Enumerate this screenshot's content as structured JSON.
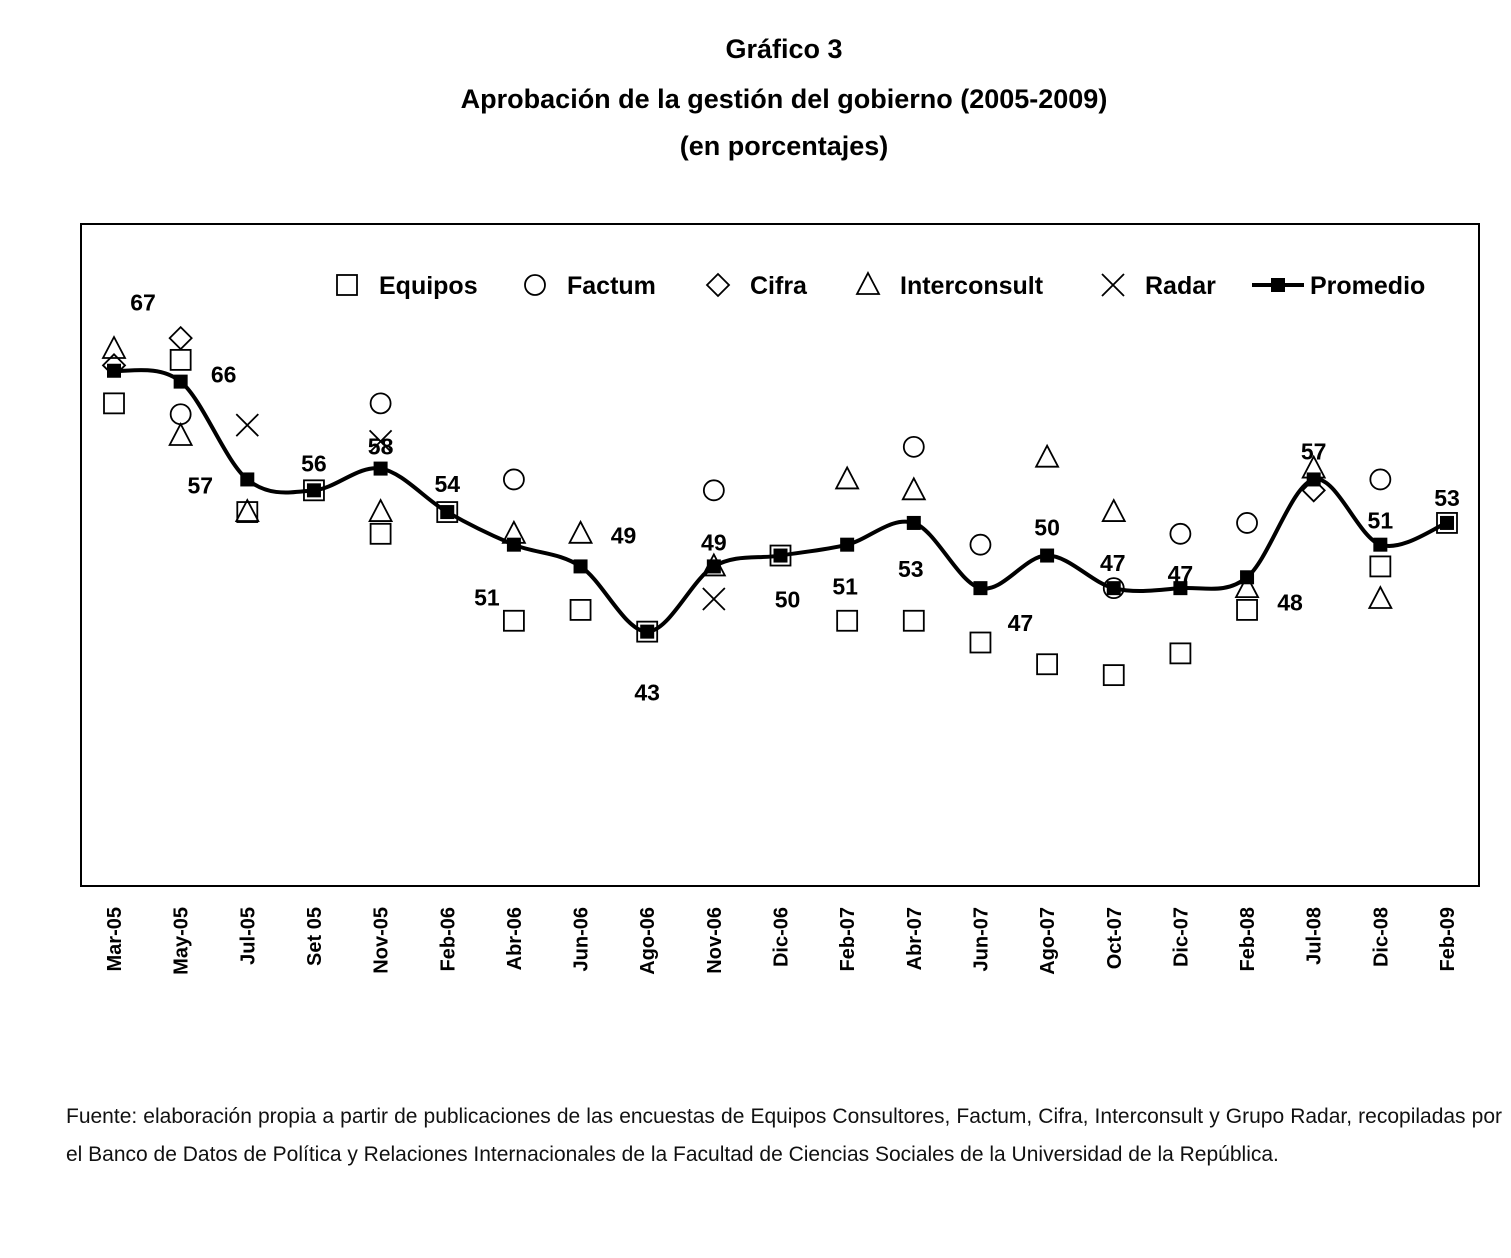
{
  "chart_data": {
    "type": "line",
    "title": "Gráfico 3",
    "subtitle": "Aprobación de la gestión del gobierno (2005-2009)",
    "subtitle2": "(en porcentajes)",
    "xlabel": "",
    "ylabel": "",
    "ylim": [
      19.6,
      80.5
    ],
    "grid": false,
    "legend_position": "top-right",
    "categories": [
      "Mar-05",
      "May-05",
      "Jul-05",
      "Set 05",
      "Nov-05",
      "Feb-06",
      "Abr-06",
      "Jun-06",
      "Ago-06",
      "Nov-06",
      "Dic-06",
      "Feb-07",
      "Abr-07",
      "Jun-07",
      "Ago-07",
      "Oct-07",
      "Dic-07",
      "Feb-08",
      "Jul-08",
      "Dic-08",
      "Feb-09"
    ],
    "series": [
      {
        "name": "Equipos",
        "marker": "square",
        "values": [
          64,
          68,
          54,
          56,
          52,
          54,
          44,
          45,
          43,
          null,
          50,
          44,
          44,
          42,
          40,
          39,
          41,
          45,
          null,
          49,
          53
        ]
      },
      {
        "name": "Factum",
        "marker": "circle",
        "values": [
          null,
          63,
          null,
          null,
          64,
          null,
          57,
          null,
          null,
          56,
          null,
          null,
          60,
          51,
          null,
          47,
          52,
          53,
          null,
          57,
          null
        ]
      },
      {
        "name": "Cifra",
        "marker": "diamond",
        "values": [
          67.5,
          70,
          null,
          null,
          null,
          null,
          null,
          null,
          null,
          null,
          null,
          null,
          null,
          null,
          null,
          null,
          null,
          null,
          56,
          null,
          null
        ]
      },
      {
        "name": "Interconsult",
        "marker": "triangle",
        "values": [
          69,
          61,
          54,
          null,
          54,
          null,
          52,
          52,
          null,
          49,
          null,
          57,
          56,
          null,
          59,
          54,
          null,
          47,
          58,
          46,
          null
        ]
      },
      {
        "name": "Radar",
        "marker": "x",
        "values": [
          null,
          null,
          62,
          null,
          60.5,
          null,
          null,
          null,
          null,
          46,
          null,
          null,
          null,
          null,
          null,
          null,
          null,
          null,
          null,
          null,
          null
        ]
      },
      {
        "name": "Promedio",
        "marker": "filled-square-line",
        "values": [
          67,
          66,
          57,
          56,
          58,
          54,
          51,
          49,
          43,
          49,
          50,
          51,
          53,
          47,
          50,
          47,
          47,
          48,
          57,
          51,
          53
        ]
      }
    ],
    "data_labels": [
      "67",
      "66",
      "57",
      "56",
      "58",
      "54",
      "51",
      "49",
      "43",
      "49",
      "50",
      "51",
      "53",
      "47",
      "50",
      "47",
      "47",
      "48",
      "57",
      "51",
      "53"
    ]
  },
  "footer": {
    "source": "Fuente: elaboración propia a partir de publicaciones de las encuestas de Equipos Consultores, Factum, Cifra, Interconsult y Grupo Radar, recopiladas por el Banco de Datos de Política y Relaciones Internacionales de la Facultad de Ciencias Sociales de la Universidad de la República."
  }
}
